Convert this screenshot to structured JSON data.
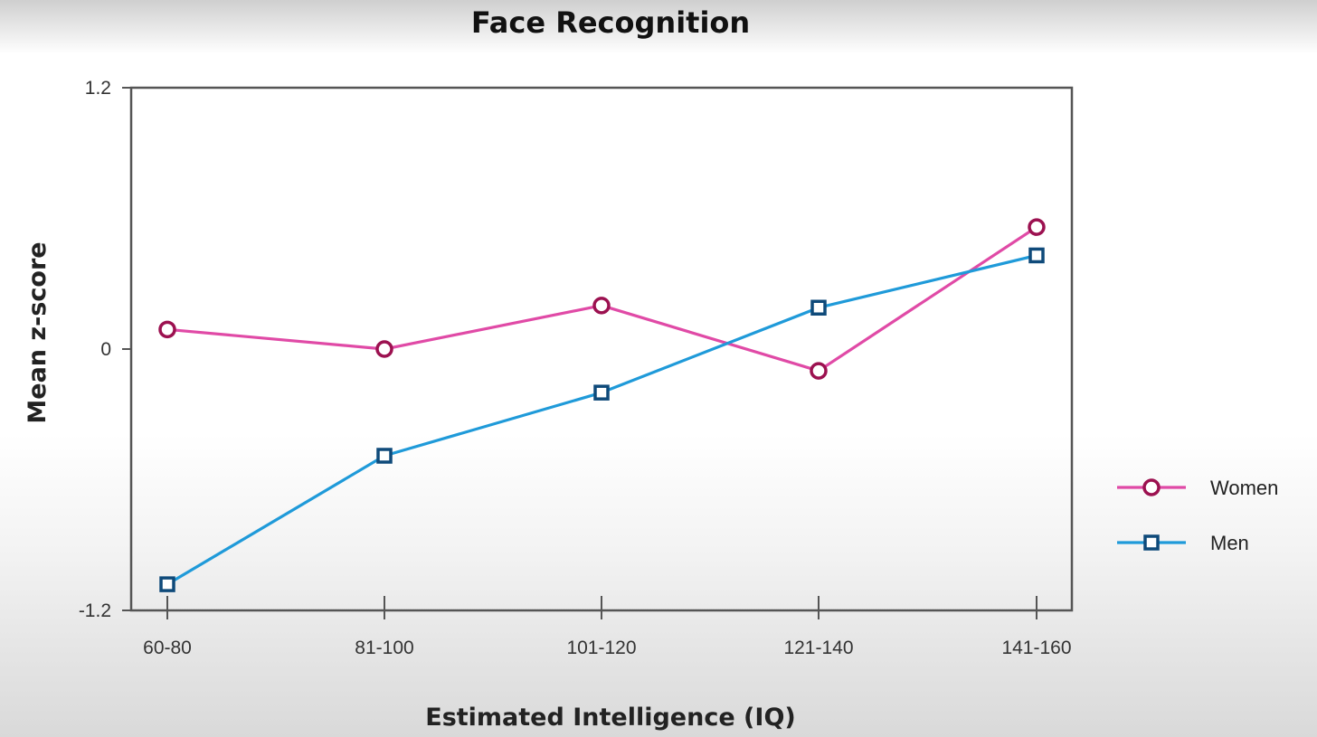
{
  "chart_data": {
    "type": "line",
    "title": "Face Recognition",
    "xlabel": "Estimated Intelligence (IQ)",
    "ylabel": "Mean z-score",
    "categories": [
      "60-80",
      "81-100",
      "101-120",
      "121-140",
      "141-160"
    ],
    "ylim": [
      -1.2,
      1.2
    ],
    "yticks": [
      "1.2",
      "0",
      "-1.2"
    ],
    "series": [
      {
        "name": "Women",
        "values": [
          0.09,
          0.0,
          0.2,
          -0.1,
          0.56
        ],
        "color": "#e04aa6",
        "marker": "circle",
        "marker_color": "#9c1150"
      },
      {
        "name": "Men",
        "values": [
          -1.08,
          -0.49,
          -0.2,
          0.19,
          0.43
        ],
        "color": "#1f9ad9",
        "marker": "square",
        "marker_color": "#0f4a7a"
      }
    ],
    "grid": false,
    "legend_position": "right"
  }
}
